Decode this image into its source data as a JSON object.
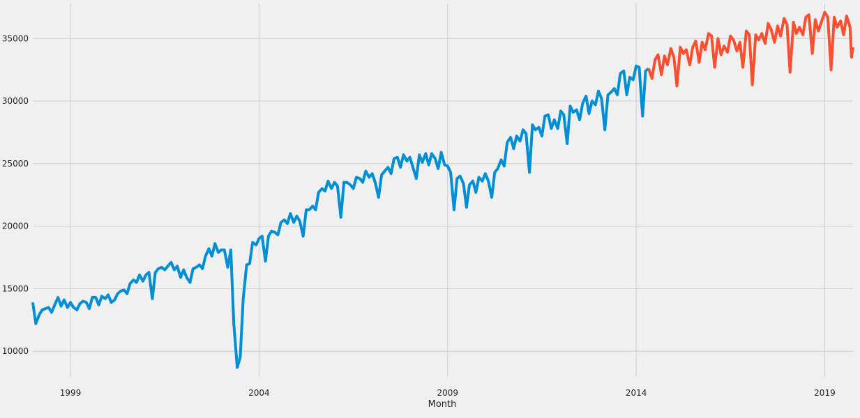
{
  "chart_data": {
    "type": "line",
    "title": "",
    "xlabel": "Month",
    "ylabel": "",
    "xlim": [
      1998.0,
      2019.75
    ],
    "ylim": [
      8000,
      37800
    ],
    "grid": true,
    "legend": "none",
    "x_ticks": [
      1999,
      2004,
      2009,
      2014,
      2019
    ],
    "x_tick_labels": [
      "1999",
      "2004",
      "2009",
      "2014",
      "2019"
    ],
    "y_ticks": [
      10000,
      15000,
      20000,
      25000,
      30000,
      35000
    ],
    "y_tick_labels": [
      "10000",
      "15000",
      "20000",
      "25000",
      "30000",
      "35000"
    ],
    "series": [
      {
        "color": "#008fd5",
        "points": [
          [
            1998.0,
            13900
          ],
          [
            1998.08,
            12200
          ],
          [
            1998.17,
            12900
          ],
          [
            1998.25,
            13300
          ],
          [
            1998.33,
            13400
          ],
          [
            1998.42,
            13500
          ],
          [
            1998.5,
            13100
          ],
          [
            1998.58,
            13700
          ],
          [
            1998.67,
            14300
          ],
          [
            1998.75,
            13600
          ],
          [
            1998.83,
            14100
          ],
          [
            1998.92,
            13500
          ],
          [
            1999.0,
            13900
          ],
          [
            1999.08,
            13500
          ],
          [
            1999.17,
            13300
          ],
          [
            1999.25,
            13800
          ],
          [
            1999.33,
            14000
          ],
          [
            1999.42,
            13900
          ],
          [
            1999.5,
            13400
          ],
          [
            1999.58,
            14300
          ],
          [
            1999.67,
            14300
          ],
          [
            1999.75,
            13700
          ],
          [
            1999.83,
            14400
          ],
          [
            1999.92,
            14200
          ],
          [
            2000.0,
            14500
          ],
          [
            2000.08,
            13900
          ],
          [
            2000.17,
            14100
          ],
          [
            2000.25,
            14600
          ],
          [
            2000.33,
            14800
          ],
          [
            2000.42,
            14900
          ],
          [
            2000.5,
            14600
          ],
          [
            2000.58,
            15400
          ],
          [
            2000.67,
            15700
          ],
          [
            2000.75,
            15500
          ],
          [
            2000.83,
            16100
          ],
          [
            2000.92,
            15600
          ],
          [
            2001.0,
            16100
          ],
          [
            2001.08,
            16300
          ],
          [
            2001.17,
            14200
          ],
          [
            2001.25,
            16300
          ],
          [
            2001.33,
            16600
          ],
          [
            2001.42,
            16700
          ],
          [
            2001.5,
            16500
          ],
          [
            2001.58,
            16800
          ],
          [
            2001.67,
            17100
          ],
          [
            2001.75,
            16500
          ],
          [
            2001.83,
            16800
          ],
          [
            2001.92,
            15900
          ],
          [
            2002.0,
            16500
          ],
          [
            2002.08,
            15900
          ],
          [
            2002.17,
            15500
          ],
          [
            2002.25,
            16600
          ],
          [
            2002.33,
            16700
          ],
          [
            2002.42,
            16900
          ],
          [
            2002.5,
            16600
          ],
          [
            2002.58,
            17600
          ],
          [
            2002.67,
            18200
          ],
          [
            2002.75,
            17600
          ],
          [
            2002.83,
            18600
          ],
          [
            2002.92,
            17900
          ],
          [
            2003.0,
            18100
          ],
          [
            2003.08,
            18100
          ],
          [
            2003.17,
            16700
          ],
          [
            2003.25,
            18100
          ],
          [
            2003.33,
            12200
          ],
          [
            2003.42,
            8700
          ],
          [
            2003.5,
            9500
          ],
          [
            2003.58,
            14200
          ],
          [
            2003.67,
            16900
          ],
          [
            2003.75,
            17000
          ],
          [
            2003.83,
            18700
          ],
          [
            2003.92,
            18500
          ],
          [
            2004.0,
            19000
          ],
          [
            2004.08,
            19200
          ],
          [
            2004.17,
            17200
          ],
          [
            2004.25,
            19200
          ],
          [
            2004.33,
            19600
          ],
          [
            2004.42,
            19500
          ],
          [
            2004.5,
            19300
          ],
          [
            2004.58,
            20300
          ],
          [
            2004.67,
            20500
          ],
          [
            2004.75,
            20200
          ],
          [
            2004.83,
            21000
          ],
          [
            2004.92,
            20300
          ],
          [
            2005.0,
            20800
          ],
          [
            2005.08,
            20400
          ],
          [
            2005.17,
            19200
          ],
          [
            2005.25,
            21300
          ],
          [
            2005.33,
            21300
          ],
          [
            2005.42,
            21600
          ],
          [
            2005.5,
            21300
          ],
          [
            2005.58,
            22700
          ],
          [
            2005.67,
            23000
          ],
          [
            2005.75,
            22800
          ],
          [
            2005.83,
            23600
          ],
          [
            2005.92,
            23000
          ],
          [
            2006.0,
            23500
          ],
          [
            2006.08,
            23200
          ],
          [
            2006.17,
            20700
          ],
          [
            2006.25,
            23500
          ],
          [
            2006.33,
            23500
          ],
          [
            2006.42,
            23300
          ],
          [
            2006.5,
            23000
          ],
          [
            2006.58,
            23900
          ],
          [
            2006.67,
            23800
          ],
          [
            2006.75,
            23500
          ],
          [
            2006.83,
            24400
          ],
          [
            2006.92,
            23900
          ],
          [
            2007.0,
            24200
          ],
          [
            2007.08,
            23500
          ],
          [
            2007.17,
            22300
          ],
          [
            2007.25,
            24100
          ],
          [
            2007.33,
            24400
          ],
          [
            2007.42,
            24700
          ],
          [
            2007.5,
            24200
          ],
          [
            2007.58,
            25400
          ],
          [
            2007.67,
            25500
          ],
          [
            2007.75,
            24700
          ],
          [
            2007.83,
            25700
          ],
          [
            2007.92,
            25200
          ],
          [
            2008.0,
            25500
          ],
          [
            2008.08,
            24700
          ],
          [
            2008.17,
            23800
          ],
          [
            2008.25,
            25700
          ],
          [
            2008.33,
            25100
          ],
          [
            2008.42,
            25800
          ],
          [
            2008.5,
            24900
          ],
          [
            2008.58,
            25800
          ],
          [
            2008.67,
            25400
          ],
          [
            2008.75,
            24600
          ],
          [
            2008.83,
            25900
          ],
          [
            2008.92,
            24900
          ],
          [
            2009.0,
            24800
          ],
          [
            2009.08,
            24300
          ],
          [
            2009.17,
            21300
          ],
          [
            2009.25,
            23800
          ],
          [
            2009.33,
            24000
          ],
          [
            2009.42,
            23400
          ],
          [
            2009.5,
            21500
          ],
          [
            2009.58,
            23300
          ],
          [
            2009.67,
            23600
          ],
          [
            2009.75,
            22700
          ],
          [
            2009.83,
            23900
          ],
          [
            2009.92,
            23600
          ],
          [
            2010.0,
            24200
          ],
          [
            2010.08,
            23600
          ],
          [
            2010.17,
            22300
          ],
          [
            2010.25,
            24300
          ],
          [
            2010.33,
            24600
          ],
          [
            2010.42,
            25300
          ],
          [
            2010.5,
            24800
          ],
          [
            2010.58,
            26700
          ],
          [
            2010.67,
            27100
          ],
          [
            2010.75,
            26200
          ],
          [
            2010.83,
            27200
          ],
          [
            2010.92,
            26800
          ],
          [
            2011.0,
            27700
          ],
          [
            2011.08,
            27400
          ],
          [
            2011.17,
            24300
          ],
          [
            2011.25,
            28100
          ],
          [
            2011.33,
            27700
          ],
          [
            2011.42,
            27900
          ],
          [
            2011.5,
            27200
          ],
          [
            2011.58,
            28800
          ],
          [
            2011.67,
            28900
          ],
          [
            2011.75,
            27800
          ],
          [
            2011.83,
            28500
          ],
          [
            2011.92,
            27800
          ],
          [
            2012.0,
            29200
          ],
          [
            2012.08,
            28900
          ],
          [
            2012.17,
            26600
          ],
          [
            2012.25,
            29600
          ],
          [
            2012.33,
            29100
          ],
          [
            2012.42,
            29300
          ],
          [
            2012.5,
            28500
          ],
          [
            2012.58,
            29800
          ],
          [
            2012.67,
            30400
          ],
          [
            2012.75,
            29000
          ],
          [
            2012.83,
            30000
          ],
          [
            2012.92,
            29700
          ],
          [
            2013.0,
            30800
          ],
          [
            2013.08,
            30200
          ],
          [
            2013.17,
            27700
          ],
          [
            2013.25,
            30500
          ],
          [
            2013.33,
            30700
          ],
          [
            2013.42,
            31000
          ],
          [
            2013.5,
            30500
          ],
          [
            2013.58,
            32200
          ],
          [
            2013.67,
            32400
          ],
          [
            2013.75,
            30500
          ],
          [
            2013.83,
            31900
          ],
          [
            2013.92,
            31700
          ],
          [
            2014.0,
            32800
          ],
          [
            2014.08,
            32700
          ],
          [
            2014.17,
            28800
          ],
          [
            2014.25,
            32400
          ],
          [
            2014.33,
            32600
          ]
        ]
      },
      {
        "color": "#fc4f30",
        "points": [
          [
            2014.33,
            32600
          ],
          [
            2014.42,
            31800
          ],
          [
            2014.5,
            33300
          ],
          [
            2014.58,
            33700
          ],
          [
            2014.67,
            32100
          ],
          [
            2014.75,
            33600
          ],
          [
            2014.83,
            32900
          ],
          [
            2014.92,
            34200
          ],
          [
            2015.0,
            33500
          ],
          [
            2015.08,
            31200
          ],
          [
            2015.17,
            34300
          ],
          [
            2015.25,
            33800
          ],
          [
            2015.33,
            34100
          ],
          [
            2015.42,
            32900
          ],
          [
            2015.5,
            34300
          ],
          [
            2015.58,
            34800
          ],
          [
            2015.67,
            33100
          ],
          [
            2015.75,
            34700
          ],
          [
            2015.83,
            34100
          ],
          [
            2015.92,
            35400
          ],
          [
            2016.0,
            35200
          ],
          [
            2016.08,
            32700
          ],
          [
            2016.17,
            35000
          ],
          [
            2016.25,
            33700
          ],
          [
            2016.33,
            34400
          ],
          [
            2016.42,
            33900
          ],
          [
            2016.5,
            35200
          ],
          [
            2016.58,
            34900
          ],
          [
            2016.67,
            34000
          ],
          [
            2016.75,
            34700
          ],
          [
            2016.83,
            32700
          ],
          [
            2016.92,
            35600
          ],
          [
            2017.0,
            35300
          ],
          [
            2017.08,
            31300
          ],
          [
            2017.17,
            35300
          ],
          [
            2017.25,
            34900
          ],
          [
            2017.33,
            35400
          ],
          [
            2017.42,
            34600
          ],
          [
            2017.5,
            36200
          ],
          [
            2017.58,
            35700
          ],
          [
            2017.67,
            34700
          ],
          [
            2017.75,
            36000
          ],
          [
            2017.83,
            35200
          ],
          [
            2017.92,
            36600
          ],
          [
            2018.0,
            36100
          ],
          [
            2018.08,
            32300
          ],
          [
            2018.17,
            36300
          ],
          [
            2018.25,
            35400
          ],
          [
            2018.33,
            35900
          ],
          [
            2018.42,
            35300
          ],
          [
            2018.5,
            36700
          ],
          [
            2018.58,
            36900
          ],
          [
            2018.67,
            33800
          ],
          [
            2018.75,
            36500
          ],
          [
            2018.83,
            35600
          ],
          [
            2019.0,
            37100
          ],
          [
            2019.08,
            36700
          ],
          [
            2019.17,
            32500
          ],
          [
            2019.25,
            36700
          ],
          [
            2019.33,
            35900
          ],
          [
            2019.42,
            36400
          ],
          [
            2019.5,
            35300
          ],
          [
            2019.58,
            36800
          ],
          [
            2019.67,
            35900
          ],
          [
            2019.71,
            33500
          ],
          [
            2019.75,
            34300
          ]
        ]
      }
    ]
  }
}
